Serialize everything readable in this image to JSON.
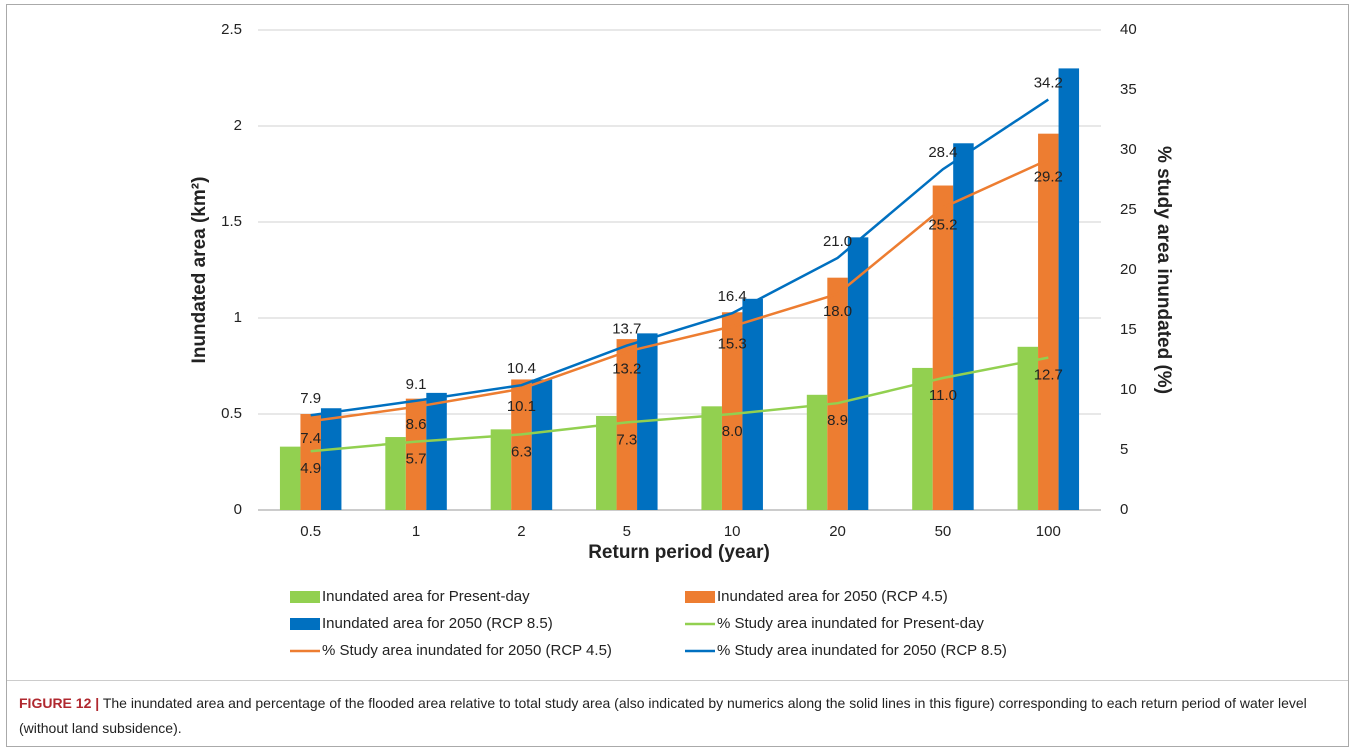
{
  "chart_data": {
    "type": "bar-line",
    "xlabel": "Return period (year)",
    "ylabel": "Inundated area (km²)",
    "y2label": "% study area inundated (%)",
    "categories": [
      "0.5",
      "1",
      "2",
      "5",
      "10",
      "20",
      "50",
      "100"
    ],
    "ylim": [
      0,
      2.5
    ],
    "yticks": [
      0,
      0.5,
      1,
      1.5,
      2,
      2.5
    ],
    "y2lim": [
      0,
      40
    ],
    "y2ticks": [
      0,
      5,
      10,
      15,
      20,
      25,
      30,
      35,
      40
    ],
    "grid": true,
    "series": [
      {
        "name": "Inundated area for Present-day",
        "kind": "bar",
        "color": "#92d050",
        "values": [
          0.33,
          0.38,
          0.42,
          0.49,
          0.54,
          0.6,
          0.74,
          0.85
        ]
      },
      {
        "name": "Inundated area for 2050 (RCP 4.5)",
        "kind": "bar",
        "color": "#ed7d31",
        "values": [
          0.5,
          0.58,
          0.68,
          0.89,
          1.03,
          1.21,
          1.69,
          1.96
        ]
      },
      {
        "name": "Inundated area for 2050 (RCP 8.5)",
        "kind": "bar",
        "color": "#0070c0",
        "values": [
          0.53,
          0.61,
          0.68,
          0.92,
          1.1,
          1.42,
          1.91,
          2.3
        ]
      },
      {
        "name": "% Study area inundated for Present-day",
        "kind": "line",
        "axis": "y2",
        "color": "#92d050",
        "label_position": "below",
        "values": [
          4.9,
          5.7,
          6.3,
          7.3,
          8.0,
          8.9,
          11.0,
          12.7
        ],
        "value_labels": [
          "4.9",
          "5.7",
          "6.3",
          "7.3",
          "8.0",
          "8.9",
          "11.0",
          "12.7"
        ]
      },
      {
        "name": "% Study area inundated for 2050 (RCP 4.5)",
        "kind": "line",
        "axis": "y2",
        "color": "#ed7d31",
        "label_position": "below",
        "values": [
          7.4,
          8.6,
          10.1,
          13.2,
          15.3,
          18.0,
          25.2,
          29.2
        ],
        "value_labels": [
          "7.4",
          "8.6",
          "10.1",
          "13.2",
          "15.3",
          "18.0",
          "25.2",
          "29.2"
        ]
      },
      {
        "name": "% Study area inundated for 2050 (RCP 8.5)",
        "kind": "line",
        "axis": "y2",
        "color": "#0070c0",
        "label_position": "above",
        "values": [
          7.9,
          9.1,
          10.4,
          13.7,
          16.4,
          21.0,
          28.4,
          34.2
        ],
        "value_labels": [
          "7.9",
          "9.1",
          "10.4",
          "13.7",
          "16.4",
          "21.0",
          "28.4",
          "34.2"
        ]
      }
    ]
  },
  "caption": {
    "label": "FIGURE 12 |",
    "text": "The inundated area and percentage of the flooded area relative to total study area (also indicated by numerics along the solid lines in this figure) corresponding to each return period of water level (without land subsidence)."
  }
}
